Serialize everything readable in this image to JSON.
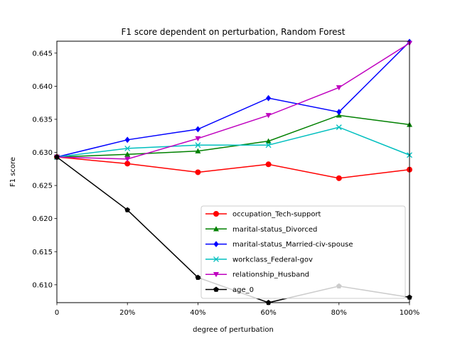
{
  "chart_data": {
    "type": "line",
    "title": "F1 score dependent on perturbation, Random Forest",
    "xlabel": "degree of perturbation",
    "ylabel": "F1 score",
    "x": [
      0,
      20,
      40,
      60,
      80,
      100
    ],
    "x_tick_labels": [
      "0",
      "20%",
      "40%",
      "60%",
      "80%",
      "100%"
    ],
    "xlim": [
      0,
      100
    ],
    "ylim": [
      0.6073,
      0.6468
    ],
    "y_ticks": [
      0.61,
      0.615,
      0.62,
      0.625,
      0.63,
      0.635,
      0.64,
      0.645
    ],
    "y_tick_labels": [
      "0.610",
      "0.615",
      "0.620",
      "0.625",
      "0.630",
      "0.635",
      "0.640",
      "0.645"
    ],
    "grid": false,
    "legend_position": "lower-right",
    "series": [
      {
        "name": "occupation_Tech-support",
        "color": "#ff0000",
        "marker": "circle",
        "values": [
          0.6293,
          0.6283,
          0.627,
          0.6282,
          0.6261,
          0.6274
        ]
      },
      {
        "name": "marital-status_Divorced",
        "color": "#008000",
        "marker": "triangle-up",
        "values": [
          0.6293,
          0.6297,
          0.6302,
          0.6317,
          0.6356,
          0.6342
        ]
      },
      {
        "name": "marital-status_Married-civ-spouse",
        "color": "#0000ff",
        "marker": "diamond",
        "values": [
          0.6293,
          0.6319,
          0.6335,
          0.6382,
          0.6361,
          0.6467
        ]
      },
      {
        "name": "workclass_Federal-gov",
        "color": "#00bfbf",
        "marker": "x",
        "values": [
          0.6293,
          0.6306,
          0.6311,
          0.6311,
          0.6338,
          0.6296
        ]
      },
      {
        "name": "relationship_Husband",
        "color": "#bf00bf",
        "marker": "triangle-down",
        "values": [
          0.6293,
          0.629,
          0.6321,
          0.6356,
          0.6398,
          0.6465
        ]
      },
      {
        "name": "age_0",
        "color": "#000000",
        "marker": "pentagon",
        "values": [
          0.6293,
          0.6213,
          0.6111,
          0.6073,
          0.6098,
          0.6081
        ]
      }
    ]
  }
}
